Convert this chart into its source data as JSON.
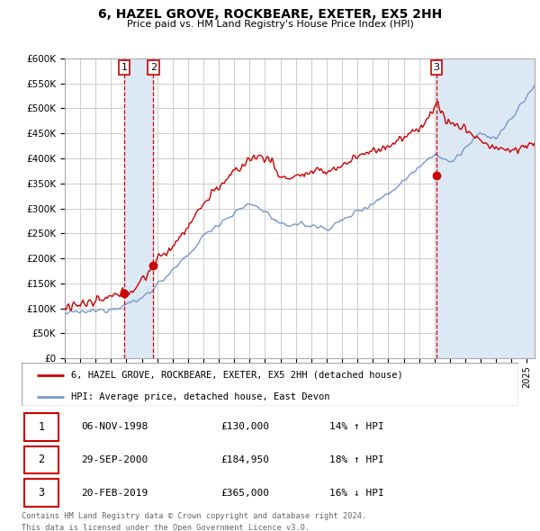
{
  "title": "6, HAZEL GROVE, ROCKBEARE, EXETER, EX5 2HH",
  "subtitle": "Price paid vs. HM Land Registry's House Price Index (HPI)",
  "background_color": "#ffffff",
  "plot_bg_color": "#ffffff",
  "grid_color": "#cccccc",
  "red_color": "#cc0000",
  "blue_color": "#7799cc",
  "shade_color": "#dde8f5",
  "ylim": [
    0,
    600000
  ],
  "yticks": [
    0,
    50000,
    100000,
    150000,
    200000,
    250000,
    300000,
    350000,
    400000,
    450000,
    500000,
    550000,
    600000
  ],
  "ytick_labels": [
    "£0",
    "£50K",
    "£100K",
    "£150K",
    "£200K",
    "£250K",
    "£300K",
    "£350K",
    "£400K",
    "£450K",
    "£500K",
    "£550K",
    "£600K"
  ],
  "sales": [
    {
      "num": 1,
      "date_str": "06-NOV-1998",
      "date_x": 1998.85,
      "price": 130000,
      "pct": "14%",
      "dir": "↑"
    },
    {
      "num": 2,
      "date_str": "29-SEP-2000",
      "date_x": 2000.75,
      "price": 184950,
      "pct": "18%",
      "dir": "↑"
    },
    {
      "num": 3,
      "date_str": "20-FEB-2019",
      "date_x": 2019.13,
      "price": 365000,
      "pct": "16%",
      "dir": "↓"
    }
  ],
  "legend_line1": "6, HAZEL GROVE, ROCKBEARE, EXETER, EX5 2HH (detached house)",
  "legend_line2": "HPI: Average price, detached house, East Devon",
  "footer1": "Contains HM Land Registry data © Crown copyright and database right 2024.",
  "footer2": "This data is licensed under the Open Government Licence v3.0.",
  "xlim_start": 1995.0,
  "xlim_end": 2025.5
}
